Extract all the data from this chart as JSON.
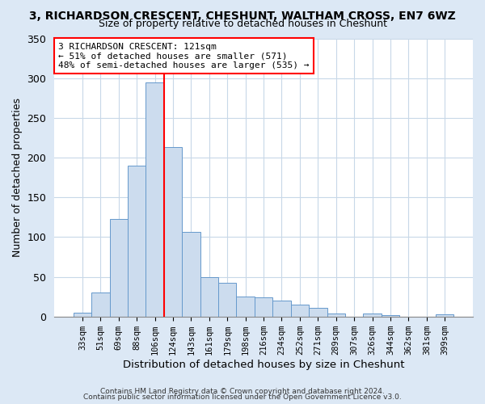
{
  "title": "3, RICHARDSON CRESCENT, CHESHUNT, WALTHAM CROSS, EN7 6WZ",
  "subtitle": "Size of property relative to detached houses in Cheshunt",
  "xlabel": "Distribution of detached houses by size in Cheshunt",
  "ylabel": "Number of detached properties",
  "bar_labels": [
    "33sqm",
    "51sqm",
    "69sqm",
    "88sqm",
    "106sqm",
    "124sqm",
    "143sqm",
    "161sqm",
    "179sqm",
    "198sqm",
    "216sqm",
    "234sqm",
    "252sqm",
    "271sqm",
    "289sqm",
    "307sqm",
    "326sqm",
    "344sqm",
    "362sqm",
    "381sqm",
    "399sqm"
  ],
  "bar_values": [
    5,
    30,
    123,
    190,
    295,
    213,
    106,
    50,
    42,
    25,
    24,
    20,
    15,
    11,
    4,
    0,
    4,
    2,
    0,
    0,
    3
  ],
  "bar_color": "#ccdcee",
  "bar_edgecolor": "#6699cc",
  "vline_x_index": 5,
  "vline_color": "red",
  "ylim": [
    0,
    350
  ],
  "yticks": [
    0,
    50,
    100,
    150,
    200,
    250,
    300,
    350
  ],
  "annotation_title": "3 RICHARDSON CRESCENT: 121sqm",
  "annotation_line1": "← 51% of detached houses are smaller (571)",
  "annotation_line2": "48% of semi-detached houses are larger (535) →",
  "annotation_box_facecolor": "#ffffff",
  "annotation_box_edgecolor": "red",
  "footer1": "Contains HM Land Registry data © Crown copyright and database right 2024.",
  "footer2": "Contains public sector information licensed under the Open Government Licence v3.0.",
  "fig_bg_color": "#dce8f5",
  "plot_bg_color": "#ffffff",
  "grid_color": "#c8d8e8"
}
